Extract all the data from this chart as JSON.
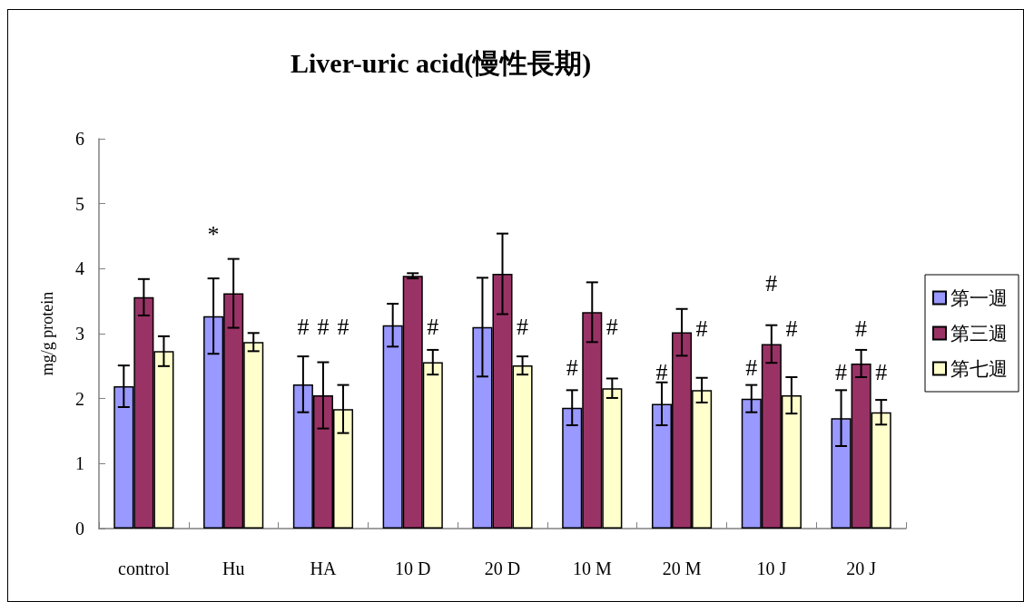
{
  "chart_data": {
    "type": "bar",
    "title": "Liver-uric acid(慢性長期)",
    "ylabel": "mg/g protein",
    "categories": [
      "control",
      "Hu",
      "HA",
      "10 D",
      "20 D",
      "10 M",
      "20 M",
      "10 J",
      "20 J"
    ],
    "series": [
      {
        "name": "第一週",
        "color": "#9999ff",
        "values": [
          2.19,
          3.27,
          2.22,
          3.13,
          3.1,
          1.86,
          1.92,
          2.0,
          1.7
        ],
        "errors": [
          0.32,
          0.58,
          0.43,
          0.33,
          0.76,
          0.27,
          0.33,
          0.21,
          0.43
        ]
      },
      {
        "name": "第三週",
        "color": "#993366",
        "values": [
          3.56,
          3.62,
          2.05,
          3.89,
          3.92,
          3.33,
          3.02,
          2.84,
          2.54
        ],
        "errors": [
          0.28,
          0.53,
          0.51,
          0.04,
          0.62,
          0.46,
          0.36,
          0.29,
          0.21
        ]
      },
      {
        "name": "第七週",
        "color": "#ffffcc",
        "values": [
          2.73,
          2.87,
          1.84,
          2.56,
          2.51,
          2.16,
          2.13,
          2.05,
          1.79
        ],
        "errors": [
          0.23,
          0.14,
          0.37,
          0.19,
          0.14,
          0.15,
          0.19,
          0.28,
          0.19
        ]
      }
    ],
    "ylim": [
      0,
      6
    ],
    "yticks": [
      0,
      1,
      2,
      3,
      4,
      5,
      6
    ],
    "legend": "right",
    "annotations": [
      "*",
      "#",
      "#",
      "#",
      "#",
      "#",
      "#",
      "#",
      "#",
      "#",
      "#",
      "#",
      "#",
      "#",
      "#",
      "#"
    ]
  }
}
